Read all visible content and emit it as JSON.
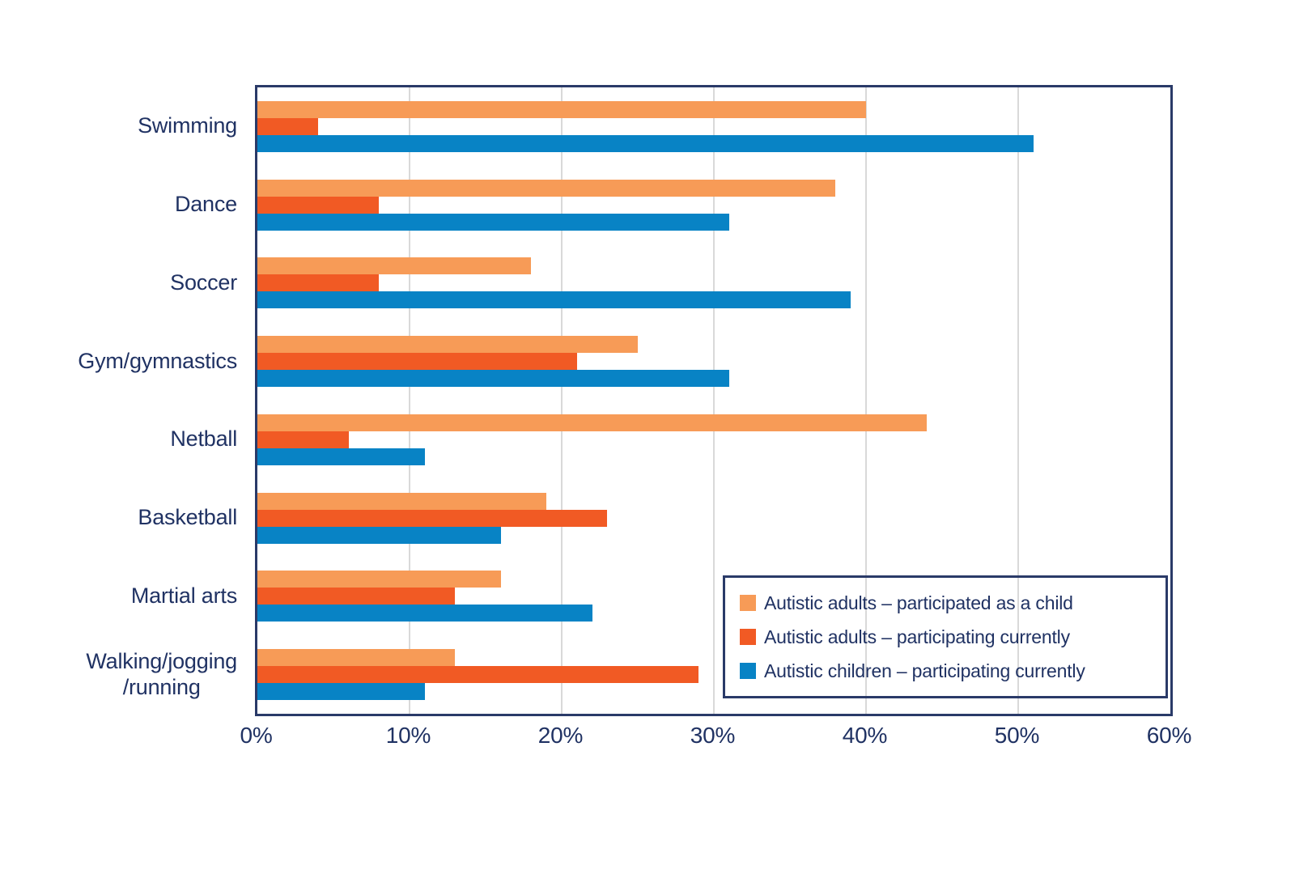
{
  "colors": {
    "series_child_participation": "#F79B57",
    "series_adults_current": "#F15A24",
    "series_children_current": "#0883C5",
    "text_navy": "#203263",
    "border_navy": "#2A3A68",
    "gridline_gray": "#D9D9D9",
    "background": "#FFFFFF"
  },
  "chart_data": {
    "type": "bar",
    "orientation": "horizontal",
    "title": "",
    "xlabel": "",
    "ylabel": "",
    "xlim": [
      0,
      60
    ],
    "x_tick_values": [
      0,
      10,
      20,
      30,
      40,
      50,
      60
    ],
    "x_ticks": [
      "0%",
      "10%",
      "20%",
      "30%",
      "40%",
      "50%",
      "60%"
    ],
    "grid": true,
    "legend_position": "inside-bottom-right",
    "categories": [
      "Swimming",
      "Dance",
      "Soccer",
      "Gym/gymnastics",
      "Netball",
      "Basketball",
      "Martial arts",
      "Walking/jogging\n/running"
    ],
    "series": [
      {
        "name": "Autistic adults – participated as a child",
        "color": "#F79B57",
        "values": [
          40,
          38,
          18,
          25,
          44,
          19,
          16,
          13
        ]
      },
      {
        "name": "Autistic adults – participating currently",
        "color": "#F15A24",
        "values": [
          4,
          8,
          8,
          21,
          6,
          23,
          13,
          29
        ]
      },
      {
        "name": "Autistic children – participating currently",
        "color": "#0883C5",
        "values": [
          51,
          31,
          39,
          31,
          11,
          16,
          22,
          11
        ]
      }
    ]
  }
}
